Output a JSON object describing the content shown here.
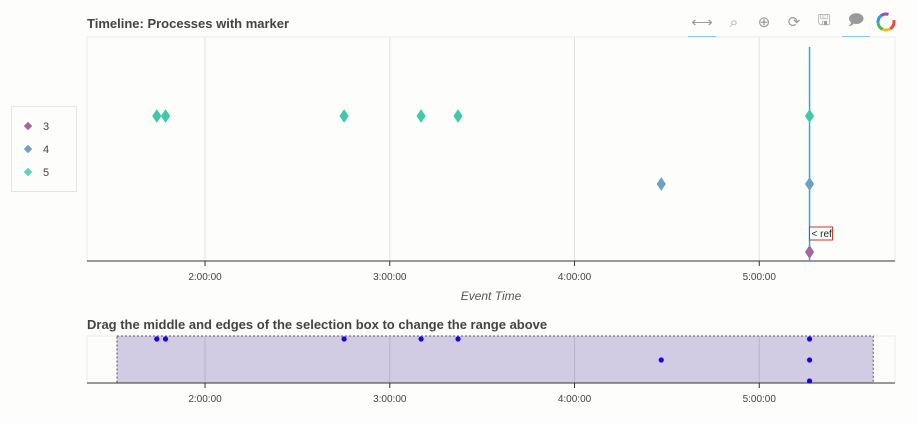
{
  "titles": {
    "main": "Timeline: Processes with marker",
    "range": "Drag the middle and edges of the selection box to change the range above"
  },
  "toolbar": [
    {
      "name": "pan-tool-icon",
      "glyph": "⟷",
      "active": true
    },
    {
      "name": "box-zoom-tool-icon",
      "glyph": "⌕",
      "active": false
    },
    {
      "name": "wheel-zoom-tool-icon",
      "glyph": "⊕",
      "active": false
    },
    {
      "name": "reset-tool-icon",
      "glyph": "⟳",
      "active": false
    },
    {
      "name": "save-tool-icon",
      "glyph": "🖫",
      "active": false
    },
    {
      "name": "hover-tool-icon",
      "glyph": "🗩",
      "active": true
    },
    {
      "name": "bokeh-logo-icon",
      "glyph": "",
      "active": false
    }
  ],
  "legend": [
    {
      "label": "3",
      "color": "#a0689a"
    },
    {
      "label": "4",
      "color": "#6e9fc4"
    },
    {
      "label": "5",
      "color": "#5fd3b8"
    }
  ],
  "chart_data": {
    "type": "scatter",
    "x_axis_label": "Event Time",
    "x_ticks": [
      "2:00:00",
      "3:00:00",
      "4:00:00",
      "5:00:00"
    ],
    "xlim_main": [
      "1:21:40",
      "5:44:05"
    ],
    "xlim_range": [
      "1:21:40",
      "5:44:05"
    ],
    "selection_range": [
      "1:21:40",
      "5:38:00"
    ],
    "reference_marker": {
      "label": "< ref",
      "x": "5:16:20",
      "color": "#26aae1"
    },
    "series": [
      {
        "name": "5",
        "color": "#40c9a8",
        "y_level": 2,
        "x": [
          "1:44:20",
          "1:47:10",
          "2:45:10",
          "3:10:10",
          "3:22:10",
          "5:16:20"
        ]
      },
      {
        "name": "4",
        "color": "#6e9fc4",
        "y_level": 1,
        "x": [
          "4:28:10",
          "5:16:20"
        ]
      },
      {
        "name": "3",
        "color": "#a0689a",
        "y_level": 0,
        "x": [
          "5:16:20"
        ]
      }
    ],
    "range_marker_color": "#1d00e8"
  }
}
